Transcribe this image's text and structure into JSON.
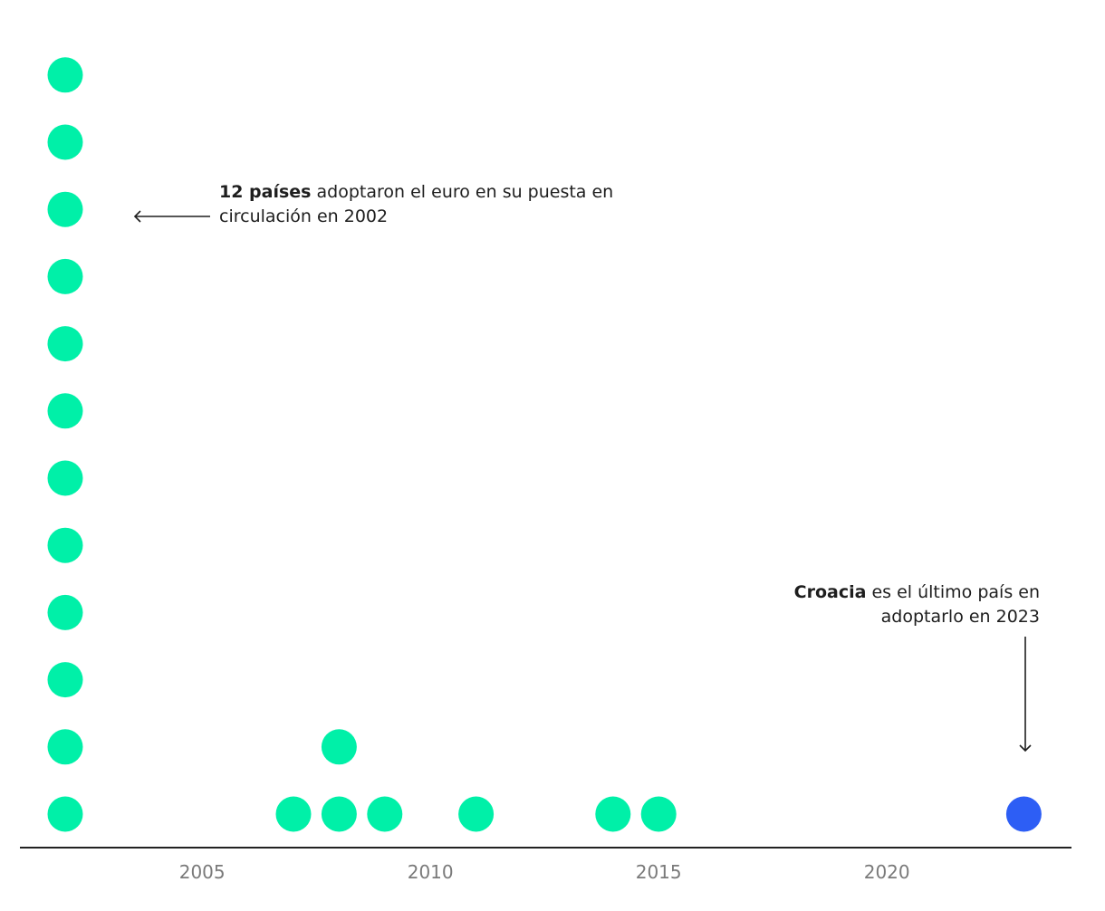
{
  "chart_data": {
    "type": "scatter",
    "subtype": "stacked dot plot",
    "title": "",
    "xlabel": "",
    "ylabel": "",
    "x_ticks": [
      2005,
      2010,
      2015,
      2020
    ],
    "xlim": [
      2000.5,
      2023.5
    ],
    "grid": false,
    "colors": {
      "default": "#00f0a8",
      "highlight": "#2d5ef5",
      "axis": "#222222",
      "tick_label": "#7a7a7a"
    },
    "points": [
      {
        "year": 2002,
        "count": 12,
        "highlight": false
      },
      {
        "year": 2007,
        "count": 1,
        "highlight": false
      },
      {
        "year": 2008,
        "count": 2,
        "highlight": false
      },
      {
        "year": 2009,
        "count": 1,
        "highlight": false
      },
      {
        "year": 2011,
        "count": 1,
        "highlight": false
      },
      {
        "year": 2014,
        "count": 1,
        "highlight": false
      },
      {
        "year": 2015,
        "count": 1,
        "highlight": false
      },
      {
        "year": 2023,
        "count": 1,
        "highlight": true
      }
    ],
    "annotations": [
      {
        "target_year": 2002,
        "bold": "12 países",
        "text": " adoptaron el euro en su puesta en circulación en 2002"
      },
      {
        "target_year": 2023,
        "bold": "Croacia",
        "text": " es el último país en adoptarlo en 2023"
      }
    ]
  }
}
